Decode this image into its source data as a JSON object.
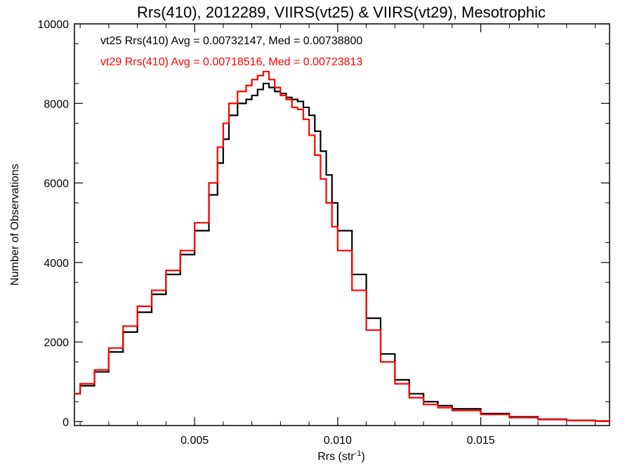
{
  "chart_data": {
    "type": "line",
    "title": "Rrs(410), 2012289, VIIRS(vt25) & VIIRS(vt29), Mesotrophic",
    "xlabel": "Rrs (str",
    "xlabel_sup": "-1",
    "xlabel_end": ")",
    "ylabel": "Number of Observations",
    "xlim": [
      0.0008,
      0.0195
    ],
    "ylim": [
      -100,
      10000
    ],
    "x_ticks": [
      0.005,
      0.01,
      0.015
    ],
    "x_tick_labels": [
      "0.005",
      "0.010",
      "0.015"
    ],
    "y_ticks": [
      0,
      2000,
      4000,
      6000,
      8000,
      10000
    ],
    "y_tick_labels": [
      "0",
      "2000",
      "4000",
      "6000",
      "8000",
      "10000"
    ],
    "grid": false,
    "legend_position": "top-left",
    "series": [
      {
        "name": "vt25 Rrs(410) Avg = 0.00732147, Med = 0.00738800",
        "color": "#000000",
        "x": [
          0.0008,
          0.001,
          0.0015,
          0.002,
          0.0025,
          0.003,
          0.0035,
          0.004,
          0.0045,
          0.005,
          0.0055,
          0.0058,
          0.006,
          0.0062,
          0.0065,
          0.0068,
          0.007,
          0.0072,
          0.0074,
          0.0076,
          0.0078,
          0.008,
          0.0082,
          0.0084,
          0.0086,
          0.0088,
          0.009,
          0.0092,
          0.0094,
          0.0096,
          0.0098,
          0.01,
          0.0105,
          0.011,
          0.0115,
          0.012,
          0.0125,
          0.013,
          0.0135,
          0.014,
          0.015,
          0.016,
          0.017,
          0.018,
          0.019,
          0.0195
        ],
        "y": [
          700,
          900,
          1250,
          1750,
          2250,
          2750,
          3200,
          3700,
          4200,
          4800,
          5700,
          6500,
          7100,
          7700,
          8000,
          8100,
          8200,
          8350,
          8500,
          8400,
          8300,
          8250,
          8150,
          8100,
          8050,
          7900,
          7700,
          7300,
          6800,
          6200,
          5500,
          4800,
          3700,
          2600,
          1700,
          1050,
          700,
          500,
          400,
          320,
          200,
          120,
          60,
          30,
          15,
          10
        ]
      },
      {
        "name": "vt29 Rrs(410) Avg = 0.00718516, Med = 0.00723813",
        "color": "#ff0000",
        "x": [
          0.0008,
          0.001,
          0.0015,
          0.002,
          0.0025,
          0.003,
          0.0035,
          0.004,
          0.0045,
          0.005,
          0.0055,
          0.0058,
          0.006,
          0.0062,
          0.0065,
          0.0068,
          0.007,
          0.0072,
          0.0074,
          0.0076,
          0.0078,
          0.008,
          0.0082,
          0.0084,
          0.0086,
          0.0088,
          0.009,
          0.0092,
          0.0094,
          0.0096,
          0.0098,
          0.01,
          0.0105,
          0.011,
          0.0115,
          0.012,
          0.0125,
          0.013,
          0.0135,
          0.014,
          0.015,
          0.016,
          0.017,
          0.018,
          0.019,
          0.0195
        ],
        "y": [
          700,
          950,
          1300,
          1850,
          2400,
          2900,
          3300,
          3800,
          4300,
          5000,
          6000,
          6900,
          7500,
          8000,
          8300,
          8450,
          8600,
          8700,
          8800,
          8600,
          8400,
          8200,
          8100,
          7900,
          7850,
          7600,
          7200,
          6700,
          6100,
          5500,
          4900,
          4300,
          3300,
          2300,
          1500,
          950,
          600,
          430,
          350,
          280,
          180,
          100,
          50,
          25,
          12,
          10
        ]
      }
    ]
  }
}
